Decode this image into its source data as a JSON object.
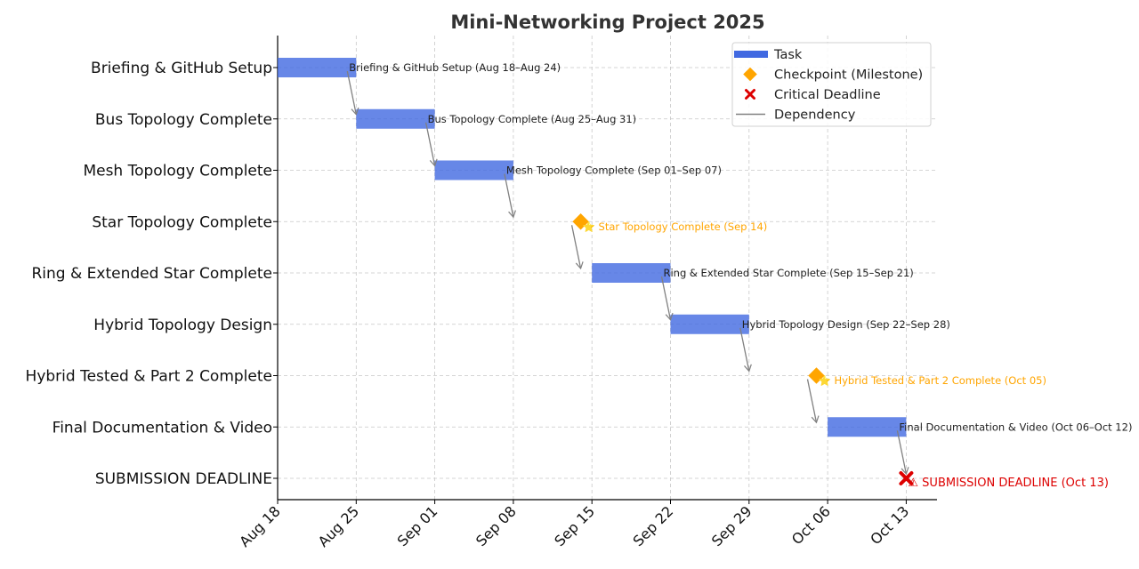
{
  "chart_data": {
    "type": "gantt",
    "title": "Mini-Networking Project 2025",
    "x_ticks": [
      "Aug 18",
      "Aug 25",
      "Sep 01",
      "Sep 08",
      "Sep 15",
      "Sep 22",
      "Sep 29",
      "Oct 06",
      "Oct 13"
    ],
    "x_range": [
      "2025-08-18",
      "2025-10-13"
    ],
    "grid": true,
    "legend_position": "top-right",
    "colors": {
      "task": "#4169e1",
      "milestone": "#ffa500",
      "deadline": "#dd0000",
      "dependency": "#808080",
      "grid": "#c8c8c8"
    },
    "legend": [
      {
        "kind": "task",
        "label": "Task"
      },
      {
        "kind": "milestone",
        "label": "Checkpoint (Milestone)"
      },
      {
        "kind": "deadline",
        "label": "Critical Deadline"
      },
      {
        "kind": "dependency",
        "label": "Dependency"
      }
    ],
    "tasks": [
      {
        "name": "Briefing & GitHub Setup",
        "type": "task",
        "start": "2025-08-18",
        "end": "2025-08-25",
        "label": "Briefing & GitHub Setup (Aug 18–Aug 24)"
      },
      {
        "name": "Bus Topology Complete",
        "type": "task",
        "start": "2025-08-25",
        "end": "2025-09-01",
        "label": "Bus Topology Complete (Aug 25–Aug 31)"
      },
      {
        "name": "Mesh Topology Complete",
        "type": "task",
        "start": "2025-09-01",
        "end": "2025-09-08",
        "label": "Mesh Topology Complete (Sep 01–Sep 07)"
      },
      {
        "name": "Star Topology Complete",
        "type": "milestone",
        "date": "2025-09-14",
        "label": "⭐ Star Topology Complete (Sep 14)"
      },
      {
        "name": "Ring & Extended Star Complete",
        "type": "task",
        "start": "2025-09-15",
        "end": "2025-09-22",
        "label": "Ring & Extended Star Complete (Sep 15–Sep 21)"
      },
      {
        "name": "Hybrid Topology Design",
        "type": "task",
        "start": "2025-09-22",
        "end": "2025-09-29",
        "label": "Hybrid Topology Design (Sep 22–Sep 28)"
      },
      {
        "name": "Hybrid Tested & Part 2 Complete",
        "type": "milestone",
        "date": "2025-10-05",
        "label": "⭐ Hybrid Tested & Part 2 Complete (Oct 05)"
      },
      {
        "name": "Final Documentation & Video",
        "type": "task",
        "start": "2025-10-06",
        "end": "2025-10-13",
        "label": "Final Documentation & Video (Oct 06–Oct 12)"
      },
      {
        "name": "SUBMISSION DEADLINE",
        "type": "deadline",
        "date": "2025-10-13",
        "label": "⚠ SUBMISSION DEADLINE (Oct 13)"
      }
    ],
    "dependencies": [
      {
        "from": "Briefing & GitHub Setup",
        "to": "Bus Topology Complete"
      },
      {
        "from": "Bus Topology Complete",
        "to": "Mesh Topology Complete"
      },
      {
        "from": "Mesh Topology Complete",
        "to": "Star Topology Complete"
      },
      {
        "from": "Star Topology Complete",
        "to": "Ring & Extended Star Complete"
      },
      {
        "from": "Ring & Extended Star Complete",
        "to": "Hybrid Topology Design"
      },
      {
        "from": "Hybrid Topology Design",
        "to": "Hybrid Tested & Part 2 Complete"
      },
      {
        "from": "Hybrid Tested & Part 2 Complete",
        "to": "Final Documentation & Video"
      },
      {
        "from": "Final Documentation & Video",
        "to": "SUBMISSION DEADLINE"
      }
    ]
  }
}
